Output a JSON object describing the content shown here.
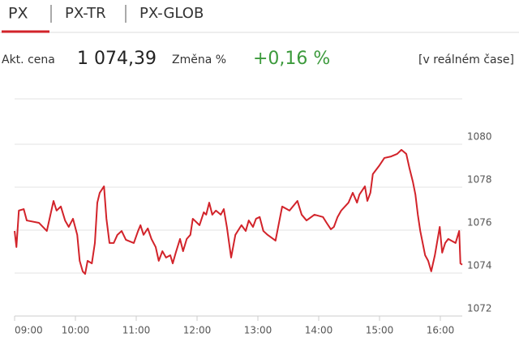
{
  "tabs": [
    "PX",
    "PX-TR",
    "PX-GLOB"
  ],
  "quote": {
    "price_label": "Akt. cena",
    "price": "1 074,39",
    "change_label": "Změna %",
    "change": "+0,16 %",
    "mode": "[v reálném čase]"
  },
  "chart_data": {
    "type": "line",
    "color": "#d2232a",
    "grid": true,
    "x": [
      9.0,
      9.03,
      9.07,
      9.15,
      9.2,
      9.4,
      9.53,
      9.64,
      9.69,
      9.76,
      9.83,
      9.89,
      9.96,
      10.03,
      10.07,
      10.12,
      10.16,
      10.2,
      10.27,
      10.32,
      10.36,
      10.4,
      10.47,
      10.51,
      10.56,
      10.63,
      10.69,
      10.76,
      10.83,
      10.96,
      11.03,
      11.07,
      11.12,
      11.19,
      11.25,
      11.32,
      11.37,
      11.43,
      11.49,
      11.56,
      11.6,
      11.65,
      11.72,
      11.77,
      11.83,
      11.89,
      11.93,
      12.04,
      12.11,
      12.15,
      12.2,
      12.25,
      12.31,
      12.39,
      12.44,
      12.49,
      12.56,
      12.63,
      12.73,
      12.8,
      12.85,
      12.92,
      12.97,
      13.03,
      13.09,
      13.16,
      13.29,
      13.36,
      13.4,
      13.52,
      13.65,
      13.72,
      13.8,
      13.93,
      14.07,
      14.13,
      14.2,
      14.25,
      14.31,
      14.37,
      14.49,
      14.56,
      14.63,
      14.67,
      14.76,
      14.8,
      14.85,
      14.89,
      14.99,
      15.08,
      15.19,
      15.29,
      15.36,
      15.44,
      15.49,
      15.55,
      15.59,
      15.63,
      15.67,
      15.75,
      15.8,
      15.85,
      15.91,
      15.99,
      16.03,
      16.08,
      16.13,
      16.25,
      16.31,
      16.33,
      16.36
    ],
    "values": [
      1075.96,
      1075.21,
      1076.91,
      1076.98,
      1076.45,
      1076.34,
      1075.96,
      1077.36,
      1076.91,
      1077.1,
      1076.45,
      1076.15,
      1076.53,
      1075.78,
      1074.57,
      1074.08,
      1073.96,
      1074.57,
      1074.45,
      1075.4,
      1077.28,
      1077.74,
      1078.04,
      1076.53,
      1075.4,
      1075.4,
      1075.78,
      1075.96,
      1075.55,
      1075.4,
      1075.96,
      1076.23,
      1075.78,
      1076.08,
      1075.59,
      1075.21,
      1074.57,
      1075.02,
      1074.72,
      1074.83,
      1074.45,
      1074.95,
      1075.59,
      1075.02,
      1075.59,
      1075.78,
      1076.53,
      1076.23,
      1076.83,
      1076.72,
      1077.28,
      1076.72,
      1076.91,
      1076.72,
      1076.98,
      1076.15,
      1074.72,
      1075.78,
      1076.23,
      1075.96,
      1076.45,
      1076.15,
      1076.53,
      1076.61,
      1075.96,
      1075.78,
      1075.51,
      1076.53,
      1077.1,
      1076.91,
      1077.36,
      1076.72,
      1076.45,
      1076.72,
      1076.61,
      1076.34,
      1076.04,
      1076.15,
      1076.61,
      1076.91,
      1077.28,
      1077.74,
      1077.28,
      1077.66,
      1078.04,
      1077.36,
      1077.74,
      1078.61,
      1078.98,
      1079.36,
      1079.43,
      1079.55,
      1079.74,
      1079.55,
      1078.91,
      1078.23,
      1077.66,
      1076.72,
      1075.96,
      1074.83,
      1074.57,
      1074.08,
      1074.83,
      1076.15,
      1074.95,
      1075.4,
      1075.59,
      1075.4,
      1075.96,
      1074.45,
      1074.39
    ],
    "xlim": [
      9,
      16.36
    ],
    "xticks": [
      {
        "value": 9,
        "label": "09:00"
      },
      {
        "value": 10,
        "label": "10:00"
      },
      {
        "value": 11,
        "label": "11:00"
      },
      {
        "value": 12,
        "label": "12:00"
      },
      {
        "value": 13,
        "label": "13:00"
      },
      {
        "value": 14,
        "label": "14:00"
      },
      {
        "value": 15,
        "label": "15:00"
      },
      {
        "value": 16,
        "label": "16:00"
      }
    ],
    "ylim": [
      1072,
      1082
    ],
    "yticks": [
      1072,
      1074,
      1076,
      1078,
      1080
    ]
  }
}
